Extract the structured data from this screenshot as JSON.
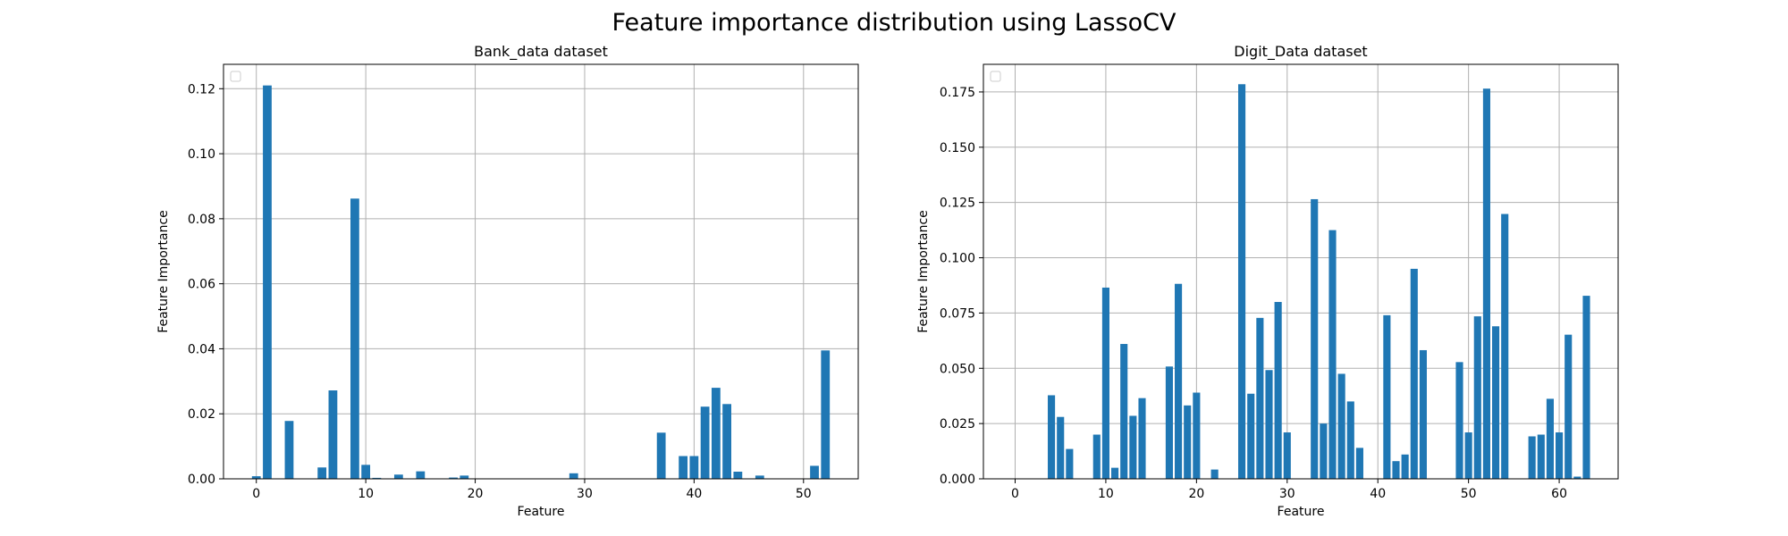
{
  "figure": {
    "title": "Feature importance distribution using LassoCV"
  },
  "chart_data": [
    {
      "type": "bar",
      "title": "Bank_data dataset",
      "xlabel": "Feature",
      "ylabel": "Feature Importance",
      "xlim": [
        -3,
        55
      ],
      "ylim": [
        0,
        0.1275
      ],
      "xticks": [
        0,
        10,
        20,
        30,
        40,
        50
      ],
      "yticks": [
        0.0,
        0.02,
        0.04,
        0.06,
        0.08,
        0.1,
        0.12
      ],
      "ytick_decimals": 2,
      "grid": true,
      "legend": "upper left (empty)",
      "color": "#1f77b4",
      "x": [
        0,
        1,
        3,
        6,
        7,
        9,
        10,
        11,
        13,
        15,
        18,
        19,
        29,
        37,
        39,
        40,
        41,
        42,
        43,
        44,
        46,
        51,
        52
      ],
      "values": [
        0.0008,
        0.121,
        0.0178,
        0.0035,
        0.0272,
        0.0862,
        0.0043,
        0.0003,
        0.0013,
        0.0023,
        0.0004,
        0.001,
        0.0017,
        0.0142,
        0.007,
        0.007,
        0.0222,
        0.028,
        0.023,
        0.0022,
        0.001,
        0.004,
        0.0395
      ]
    },
    {
      "type": "bar",
      "title": "Digit_Data dataset",
      "xlabel": "Feature",
      "ylabel": "Feature Importance",
      "xlim": [
        -3.5,
        66.5
      ],
      "ylim": [
        0,
        0.1875
      ],
      "xticks": [
        0,
        10,
        20,
        30,
        40,
        50,
        60
      ],
      "yticks": [
        0.0,
        0.025,
        0.05,
        0.075,
        0.1,
        0.125,
        0.15,
        0.175
      ],
      "ytick_decimals": 3,
      "grid": true,
      "legend": "upper left (empty)",
      "color": "#1f77b4",
      "x": [
        4,
        5,
        6,
        9,
        10,
        11,
        12,
        13,
        14,
        17,
        18,
        19,
        20,
        22,
        25,
        26,
        27,
        28,
        29,
        30,
        33,
        34,
        35,
        36,
        37,
        38,
        41,
        42,
        43,
        44,
        45,
        49,
        50,
        51,
        52,
        53,
        54,
        57,
        58,
        59,
        60,
        61,
        62,
        63
      ],
      "values": [
        0.0378,
        0.028,
        0.0135,
        0.02,
        0.0865,
        0.005,
        0.061,
        0.0285,
        0.0365,
        0.0508,
        0.0882,
        0.0332,
        0.039,
        0.0042,
        0.1785,
        0.0385,
        0.0728,
        0.0492,
        0.08,
        0.021,
        0.1265,
        0.025,
        0.1125,
        0.0475,
        0.035,
        0.014,
        0.074,
        0.008,
        0.011,
        0.095,
        0.0582,
        0.0528,
        0.021,
        0.0735,
        0.1765,
        0.069,
        0.1198,
        0.0192,
        0.02,
        0.0362,
        0.021,
        0.0652,
        0.001,
        0.0828
      ]
    }
  ]
}
